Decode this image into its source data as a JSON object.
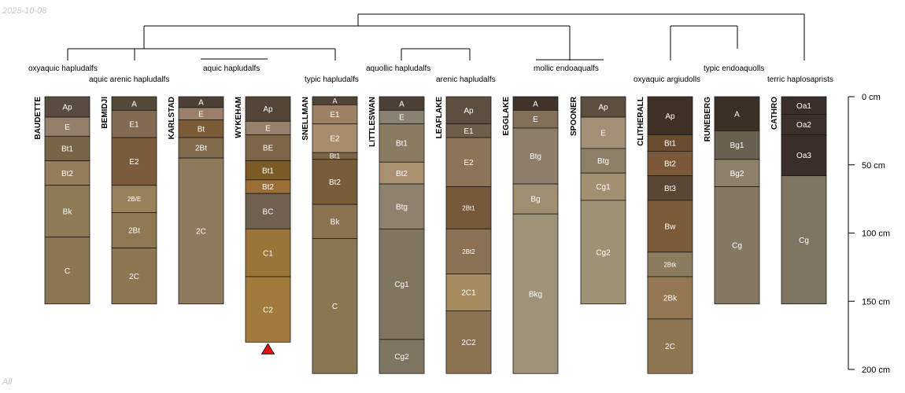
{
  "date_label": "2025-10-08",
  "footer_label": "All",
  "colors": {
    "outline": "#1a1a1a",
    "line": "#000000",
    "marker": "#e01010"
  },
  "taxa": [
    {
      "id": "t1",
      "label": "oxyaquic hapludalfs"
    },
    {
      "id": "t2",
      "label": "aquic arenic hapludalfs"
    },
    {
      "id": "t3",
      "label": "aquic hapludalfs"
    },
    {
      "id": "t4",
      "label": "typic hapludalfs"
    },
    {
      "id": "t5",
      "label": "aquollic hapludalfs"
    },
    {
      "id": "t6",
      "label": "arenic hapludalfs"
    },
    {
      "id": "t7",
      "label": "mollic endoaqualfs"
    },
    {
      "id": "t8",
      "label": "oxyaquic argiudolls"
    },
    {
      "id": "t9",
      "label": "typic endoaquolls"
    },
    {
      "id": "t10",
      "label": "terric haplosaprists"
    }
  ],
  "depth_axis": {
    "max": 200,
    "ticks": [
      {
        "depth": 0,
        "label": "0 cm"
      },
      {
        "depth": 50,
        "label": "50 cm"
      },
      {
        "depth": 100,
        "label": "100 cm"
      },
      {
        "depth": 150,
        "label": "150 cm"
      },
      {
        "depth": 200,
        "label": "200 cm"
      }
    ]
  },
  "profiles": [
    {
      "name": "BAUDETTE",
      "horizons": [
        {
          "name": "Ap",
          "top": 0,
          "bottom": 15,
          "color": "#584c40"
        },
        {
          "name": "E",
          "top": 15,
          "bottom": 29,
          "color": "#94806a"
        },
        {
          "name": "Bt1",
          "top": 29,
          "bottom": 47,
          "color": "#7a6448"
        },
        {
          "name": "Bt2",
          "top": 47,
          "bottom": 65,
          "color": "#957c5a"
        },
        {
          "name": "Bk",
          "top": 65,
          "bottom": 103,
          "color": "#8f7a56"
        },
        {
          "name": "C",
          "top": 103,
          "bottom": 152,
          "color": "#8c7752"
        }
      ]
    },
    {
      "name": "BEMIDJI",
      "horizons": [
        {
          "name": "A",
          "top": 0,
          "bottom": 10,
          "color": "#54483a"
        },
        {
          "name": "E1",
          "top": 10,
          "bottom": 30,
          "color": "#826a50"
        },
        {
          "name": "E2",
          "top": 30,
          "bottom": 65,
          "color": "#7a5c3c"
        },
        {
          "name": "2B/E",
          "top": 65,
          "bottom": 85,
          "color": "#98805a"
        },
        {
          "name": "2Bt",
          "top": 85,
          "bottom": 111,
          "color": "#8e7852"
        },
        {
          "name": "2C",
          "top": 111,
          "bottom": 152,
          "color": "#8c7752"
        }
      ]
    },
    {
      "name": "KARLSTAD",
      "horizons": [
        {
          "name": "A",
          "top": 0,
          "bottom": 8,
          "color": "#4c4034"
        },
        {
          "name": "E",
          "top": 8,
          "bottom": 17,
          "color": "#9a806a"
        },
        {
          "name": "Bt",
          "top": 17,
          "bottom": 30,
          "color": "#7a5c36"
        },
        {
          "name": "2Bt",
          "top": 30,
          "bottom": 45,
          "color": "#826a4c"
        },
        {
          "name": "2C",
          "top": 45,
          "bottom": 152,
          "color": "#907a5e"
        }
      ]
    },
    {
      "name": "WYKEHAM",
      "horizons": [
        {
          "name": "Ap",
          "top": 0,
          "bottom": 18,
          "color": "#524436"
        },
        {
          "name": "E",
          "top": 18,
          "bottom": 28,
          "color": "#96806c"
        },
        {
          "name": "BE",
          "top": 28,
          "bottom": 47,
          "color": "#7e6446"
        },
        {
          "name": "Bt1",
          "top": 47,
          "bottom": 61,
          "color": "#7c5a26"
        },
        {
          "name": "Bt2",
          "top": 61,
          "bottom": 71,
          "color": "#9a6e34"
        },
        {
          "name": "BC",
          "top": 71,
          "bottom": 97,
          "color": "#706050"
        },
        {
          "name": "C1",
          "top": 97,
          "bottom": 132,
          "color": "#9a7438"
        },
        {
          "name": "C2",
          "top": 132,
          "bottom": 180,
          "color": "#a27a3a"
        }
      ],
      "marker": true
    },
    {
      "name": "SNELLMAN",
      "horizons": [
        {
          "name": "A",
          "top": 0,
          "bottom": 6,
          "color": "#524434"
        },
        {
          "name": "E1",
          "top": 6,
          "bottom": 20,
          "color": "#9e8064"
        },
        {
          "name": "E2",
          "top": 20,
          "bottom": 41,
          "color": "#a88c6c"
        },
        {
          "name": "Bt1",
          "top": 41,
          "bottom": 46,
          "color": "#7c6448"
        },
        {
          "name": "Bt2",
          "top": 46,
          "bottom": 79,
          "color": "#7a5c38"
        },
        {
          "name": "Bk",
          "top": 79,
          "bottom": 104,
          "color": "#8a7250"
        },
        {
          "name": "C",
          "top": 104,
          "bottom": 203,
          "color": "#8a7652"
        }
      ]
    },
    {
      "name": "LITTLESWAN",
      "horizons": [
        {
          "name": "A",
          "top": 0,
          "bottom": 10,
          "color": "#4c4034"
        },
        {
          "name": "E",
          "top": 10,
          "bottom": 20,
          "color": "#8a8270"
        },
        {
          "name": "Bt1",
          "top": 20,
          "bottom": 48,
          "color": "#8a7c62"
        },
        {
          "name": "Bt2",
          "top": 48,
          "bottom": 64,
          "color": "#a89070"
        },
        {
          "name": "Btg",
          "top": 64,
          "bottom": 97,
          "color": "#8e826e"
        },
        {
          "name": "Cg1",
          "top": 97,
          "bottom": 178,
          "color": "#807660"
        },
        {
          "name": "Cg2",
          "top": 178,
          "bottom": 203,
          "color": "#7e7462"
        }
      ]
    },
    {
      "name": "LEAFLAKE",
      "horizons": [
        {
          "name": "Ap",
          "top": 0,
          "bottom": 20,
          "color": "#5c4e40"
        },
        {
          "name": "E1",
          "top": 20,
          "bottom": 30,
          "color": "#705e4c"
        },
        {
          "name": "E2",
          "top": 30,
          "bottom": 66,
          "color": "#8c7458"
        },
        {
          "name": "2Bt1",
          "top": 66,
          "bottom": 97,
          "color": "#76583a"
        },
        {
          "name": "2Bt2",
          "top": 97,
          "bottom": 130,
          "color": "#8c7254"
        },
        {
          "name": "2C1",
          "top": 130,
          "bottom": 157,
          "color": "#a48c60"
        },
        {
          "name": "2C2",
          "top": 157,
          "bottom": 203,
          "color": "#8a7252"
        }
      ]
    },
    {
      "name": "EGGLAKE",
      "horizons": [
        {
          "name": "A",
          "top": 0,
          "bottom": 10,
          "color": "#403428"
        },
        {
          "name": "E",
          "top": 10,
          "bottom": 23,
          "color": "#827058"
        },
        {
          "name": "Btg",
          "top": 23,
          "bottom": 64,
          "color": "#8c7e68"
        },
        {
          "name": "Bg",
          "top": 64,
          "bottom": 86,
          "color": "#a08e72"
        },
        {
          "name": "Bkg",
          "top": 86,
          "bottom": 203,
          "color": "#9e9278"
        }
      ]
    },
    {
      "name": "SPOONER",
      "horizons": [
        {
          "name": "Ap",
          "top": 0,
          "bottom": 15,
          "color": "#5c4e40"
        },
        {
          "name": "E",
          "top": 15,
          "bottom": 38,
          "color": "#a49076"
        },
        {
          "name": "Btg",
          "top": 38,
          "bottom": 56,
          "color": "#8c8068"
        },
        {
          "name": "Cg1",
          "top": 56,
          "bottom": 76,
          "color": "#a29070"
        },
        {
          "name": "Cg2",
          "top": 76,
          "bottom": 152,
          "color": "#9e9274"
        }
      ]
    },
    {
      "name": "CLITHERALL",
      "horizons": [
        {
          "name": "Ap",
          "top": 0,
          "bottom": 28,
          "color": "#3e3024"
        },
        {
          "name": "Bt1",
          "top": 28,
          "bottom": 40,
          "color": "#6a4c30"
        },
        {
          "name": "Bt2",
          "top": 40,
          "bottom": 58,
          "color": "#7a5838"
        },
        {
          "name": "Bt3",
          "top": 58,
          "bottom": 76,
          "color": "#5a4634"
        },
        {
          "name": "Bw",
          "top": 76,
          "bottom": 114,
          "color": "#7c5c38"
        },
        {
          "name": "2Btk",
          "top": 114,
          "bottom": 132,
          "color": "#8a7c5c"
        },
        {
          "name": "2Bk",
          "top": 132,
          "bottom": 163,
          "color": "#947650"
        },
        {
          "name": "2C",
          "top": 163,
          "bottom": 203,
          "color": "#8e7652"
        }
      ]
    },
    {
      "name": "RUNEBERG",
      "horizons": [
        {
          "name": "A",
          "top": 0,
          "bottom": 25,
          "color": "#3a3024"
        },
        {
          "name": "Bg1",
          "top": 25,
          "bottom": 46,
          "color": "#686050"
        },
        {
          "name": "Bg2",
          "top": 46,
          "bottom": 66,
          "color": "#8c806a"
        },
        {
          "name": "Cg",
          "top": 66,
          "bottom": 152,
          "color": "#827864"
        }
      ]
    },
    {
      "name": "CATHRO",
      "horizons": [
        {
          "name": "Oa1",
          "top": 0,
          "bottom": 13,
          "color": "#3a2e28"
        },
        {
          "name": "Oa2",
          "top": 13,
          "bottom": 28,
          "color": "#3c302a"
        },
        {
          "name": "Oa3",
          "top": 28,
          "bottom": 58,
          "color": "#3a2e2a"
        },
        {
          "name": "Cg",
          "top": 58,
          "bottom": 152,
          "color": "#7e7462"
        }
      ]
    }
  ]
}
